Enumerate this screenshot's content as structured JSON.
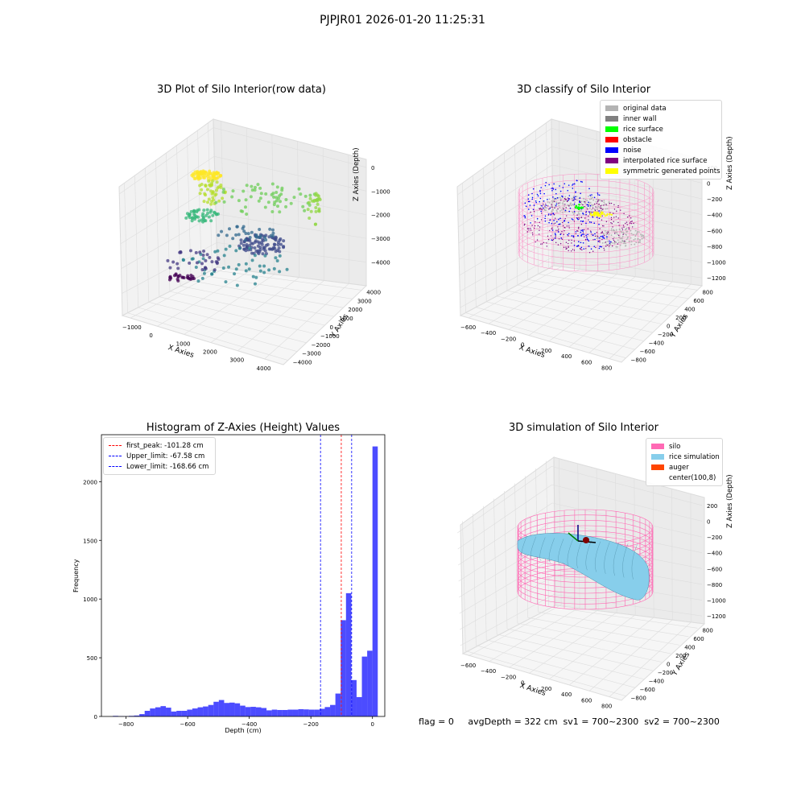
{
  "suptitle": "PJPJR01 2026-01-20 11:25:31",
  "footer": "flag = 0     avgDepth = 322 cm  sv1 = 700~2300  sv2 = 700~2300",
  "chart_data": [
    {
      "type": "scatter",
      "subtype": "3d",
      "title": "3D Plot of Silo Interior(row data)",
      "xlabel": "X Axies",
      "ylabel": "Y Axies",
      "zlabel": "Z Axies (Depth)",
      "xticks": [
        "−1000",
        "0",
        "1000",
        "2000",
        "3000",
        "4000"
      ],
      "yticks": [
        "4000",
        "3000",
        "2000",
        "1000",
        "0",
        "−1000",
        "−2000",
        "−3000",
        "−4000"
      ],
      "zticks": [
        "0",
        "−1000",
        "−2000",
        "−3000",
        "−4000"
      ],
      "colormap": "viridis"
    },
    {
      "type": "scatter",
      "subtype": "3d",
      "title": "3D classify of Silo Interior",
      "xlabel": "X Axies",
      "ylabel": "Y Axies",
      "zlabel": "Z Axies (Depth)",
      "xticks": [
        "−600",
        "−400",
        "−200",
        "0",
        "200",
        "400",
        "600",
        "800"
      ],
      "yticks": [
        "800",
        "600",
        "400",
        "200",
        "0",
        "−200",
        "−400",
        "−600",
        "−800"
      ],
      "zticks": [
        "200",
        "0",
        "−200",
        "−400",
        "−600",
        "−800",
        "−1000",
        "−1200"
      ],
      "legend_position": "top-right",
      "legend": [
        {
          "label": "original data",
          "color": "#b3b3b3"
        },
        {
          "label": "inner wall",
          "color": "#808080"
        },
        {
          "label": "rice surface",
          "color": "#00ff00"
        },
        {
          "label": "obstacle",
          "color": "#ff0000"
        },
        {
          "label": "noise",
          "color": "#0000ff"
        },
        {
          "label": "interpolated rice surface",
          "color": "#800080"
        },
        {
          "label": "symmetric generated points",
          "color": "#ffff00"
        }
      ]
    },
    {
      "type": "bar",
      "subtype": "histogram",
      "title": "Histogram of Z-Axies (Height) Values",
      "xlabel": "Depth (cm)",
      "ylabel": "Frequency",
      "xlim": [
        -880,
        40
      ],
      "ylim": [
        0,
        2400
      ],
      "xticks": [
        -800,
        -600,
        -400,
        -200,
        0
      ],
      "xtick_labels": [
        "−800",
        "−600",
        "−400",
        "−200",
        "0"
      ],
      "yticks": [
        0,
        500,
        1000,
        1500,
        2000
      ],
      "bar_color": "#0000ff",
      "bin_start": -860,
      "bin_width": 17.2,
      "values": [
        0,
        5,
        3,
        2,
        5,
        8,
        20,
        48,
        68,
        78,
        88,
        75,
        42,
        48,
        48,
        58,
        68,
        78,
        85,
        98,
        125,
        140,
        115,
        118,
        112,
        92,
        80,
        82,
        78,
        72,
        52,
        58,
        55,
        55,
        58,
        58,
        62,
        60,
        58,
        58,
        65,
        80,
        98,
        195,
        820,
        1050,
        310,
        165,
        510,
        560,
        2300
      ],
      "vlines": [
        {
          "label": "first_peak: -101.28 cm",
          "x": -101.28,
          "color": "#ff0000"
        },
        {
          "label": "Upper_limit: -67.58 cm",
          "x": -67.58,
          "color": "#0000ff"
        },
        {
          "label": "Lower_limit: -168.66 cm",
          "x": -168.66,
          "color": "#0000ff"
        }
      ],
      "legend_position": "top-left"
    },
    {
      "type": "area",
      "subtype": "3d-surface",
      "title": "3D simulation of Silo Interior",
      "xlabel": "X Axies",
      "ylabel": "Y Axies",
      "zlabel": "Z Axies (Depth)",
      "xticks": [
        "−600",
        "−400",
        "−200",
        "0",
        "200",
        "400",
        "600",
        "800"
      ],
      "yticks": [
        "800",
        "600",
        "400",
        "200",
        "0",
        "−200",
        "−400",
        "−600",
        "−800"
      ],
      "zticks": [
        "200",
        "0",
        "−200",
        "−400",
        "−600",
        "−800",
        "−1000",
        "−1200"
      ],
      "legend_position": "top-right",
      "legend": [
        {
          "label": "silo",
          "color": "#ff69b4"
        },
        {
          "label": "rice simulation",
          "color": "#87ceeb"
        },
        {
          "label": "auger",
          "color": "#ff4500"
        },
        {
          "label": "center(100,8)",
          "color": "#ffffff"
        }
      ]
    }
  ]
}
